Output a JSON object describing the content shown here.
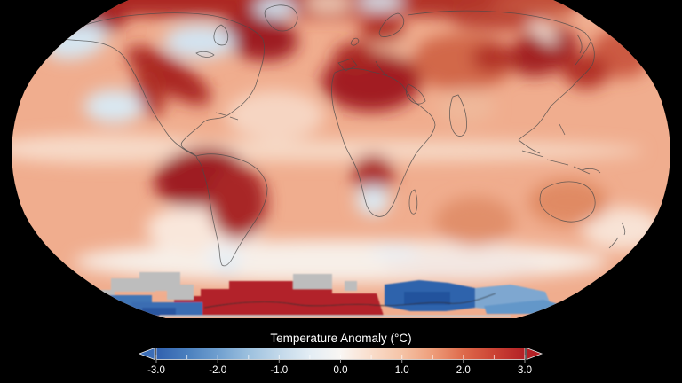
{
  "page": {
    "background": "#000000",
    "text_color": "#ffffff"
  },
  "map": {
    "description": "Global temperature anomaly world map, Robinson-style projection on black background",
    "palette": {
      "base_warm": "#f0ad8e",
      "deep_red": "#9e1d22",
      "red": "#b2202a",
      "medium_warm": "#dd8663",
      "pale": "#f7efe8",
      "light_blue": "#d6e6f1",
      "mid_blue": "#3a6db2",
      "deep_blue": "#2e63ac",
      "no_data_gray": "#bdbdbd",
      "coastline": "#4a4a4a"
    }
  },
  "colorbar": {
    "title": "Temperature Anomaly (°C)",
    "min": -3.0,
    "max": 3.0,
    "tick_labels": [
      "-3.0",
      "-2.0",
      "-1.0",
      "0.0",
      "1.0",
      "2.0",
      "3.0"
    ],
    "tick_values": [
      -3,
      -2,
      -1,
      0,
      1,
      2,
      3
    ],
    "minor_tick_step": 0.5,
    "left_arrow_color": "#3b6db7",
    "right_arrow_color": "#b22025",
    "outline_color": "#e8e8e8",
    "gradient": [
      {
        "v": -3.0,
        "c": "#3060ae"
      },
      {
        "v": -2.5,
        "c": "#4a7fbe"
      },
      {
        "v": -2.0,
        "c": "#6f9fcf"
      },
      {
        "v": -1.5,
        "c": "#9cc0de"
      },
      {
        "v": -1.0,
        "c": "#c2d8ea"
      },
      {
        "v": -0.5,
        "c": "#e3edf4"
      },
      {
        "v": 0.0,
        "c": "#f9f6f3"
      },
      {
        "v": 0.5,
        "c": "#f9ddcb"
      },
      {
        "v": 1.0,
        "c": "#f5c3a6"
      },
      {
        "v": 1.5,
        "c": "#ee9d7a"
      },
      {
        "v": 2.0,
        "c": "#de6a4b"
      },
      {
        "v": 2.5,
        "c": "#cb4234"
      },
      {
        "v": 3.0,
        "c": "#b22025"
      }
    ]
  },
  "chart_data": {
    "type": "heatmap",
    "title": "Temperature Anomaly (°C)",
    "legend_position": "bottom",
    "colorbar_range": [
      -3,
      3
    ],
    "colorbar_ticks": [
      -3,
      -2,
      -1,
      0,
      1,
      2,
      3
    ],
    "notable_regions": [
      {
        "region": "Arctic / northern high latitudes",
        "anomaly_c": 2.5
      },
      {
        "region": "Northeast Canada (Quebec / Labrador)",
        "anomaly_c": 3.0
      },
      {
        "region": "Central North America (Great Lakes)",
        "anomaly_c": -0.7
      },
      {
        "region": "Bering Sea / Alaska coast",
        "anomaly_c": -0.5
      },
      {
        "region": "Northeast Pacific (east of Hawaii)",
        "anomaly_c": -0.5
      },
      {
        "region": "Europe / Mediterranean / North Africa",
        "anomaly_c": 2.7
      },
      {
        "region": "Northeast Siberia / Kamchatka",
        "anomaly_c": 2.5
      },
      {
        "region": "Eastern tropical Pacific / Amazon",
        "anomaly_c": 2.8
      },
      {
        "region": "India / Southeast Asia",
        "anomaly_c": 0.8
      },
      {
        "region": "Australia",
        "anomaly_c": 1.2
      },
      {
        "region": "Southern Ocean band",
        "anomaly_c": 0.2
      },
      {
        "region": "West Antarctica",
        "anomaly_c": 3.0
      },
      {
        "region": "East Antarctic coast",
        "anomaly_c": -2.5
      },
      {
        "region": "Antarctic interior patches",
        "anomaly_c": null,
        "note": "no data (gray)"
      }
    ]
  }
}
